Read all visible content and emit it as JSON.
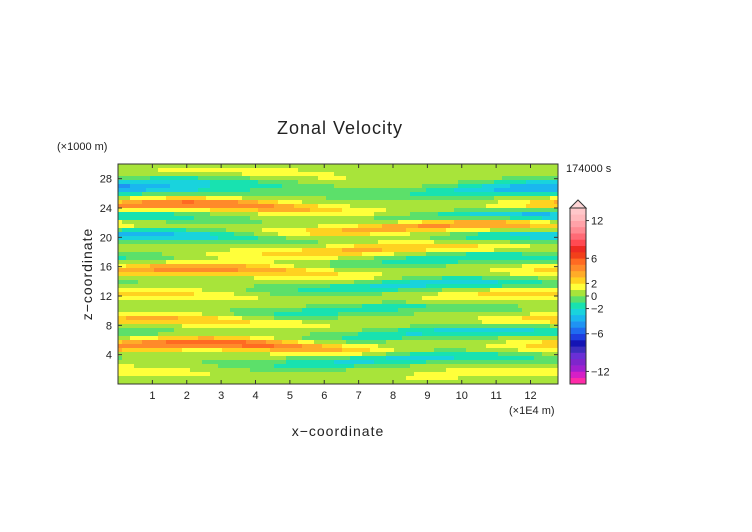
{
  "chart_data": {
    "type": "heatmap",
    "title": "Zonal Velocity",
    "xlabel": "x−coordinate",
    "ylabel": "z−coordinate",
    "x_unit": "(×1E4 m)",
    "y_unit": "(×1000 m)",
    "time_label": "174000 s",
    "xlim": [
      0,
      12.8
    ],
    "ylim": [
      0,
      30
    ],
    "x_ticks": [
      "1",
      "2",
      "3",
      "4",
      "5",
      "6",
      "7",
      "8",
      "9",
      "10",
      "11",
      "12"
    ],
    "y_ticks": [
      "4",
      "8",
      "12",
      "16",
      "20",
      "24",
      "28"
    ],
    "colorbar": {
      "levels": [
        -14,
        -13,
        -12,
        -11,
        -10,
        -9,
        -8,
        -7,
        -6,
        -5,
        -4,
        -3,
        -2,
        -1,
        0,
        1,
        2,
        3,
        4,
        5,
        6,
        7,
        8,
        9,
        10,
        11,
        12,
        13,
        14
      ],
      "colors": [
        "#ff2aa8",
        "#d61fc6",
        "#a01fd0",
        "#7f25cc",
        "#6a2fd6",
        "#3d2dbf",
        "#1414b4",
        "#1e3ee0",
        "#1f6bf0",
        "#1f93f3",
        "#1ab6ef",
        "#19d3dd",
        "#18e2b0",
        "#5ce06a",
        "#a8e43a",
        "#ffff3a",
        "#ffd220",
        "#ffac28",
        "#ff8a2a",
        "#ff6a22",
        "#f2401a",
        "#ee2a22",
        "#ff4a52",
        "#ff6a75",
        "#ff8a92",
        "#ffa2a8",
        "#ffb9bc",
        "#ffc7c9"
      ],
      "tick_labels": [
        {
          "value": 12,
          "label": "12"
        },
        {
          "value": 6,
          "label": "6"
        },
        {
          "value": 2,
          "label": "2"
        },
        {
          "value": 0,
          "label": "0"
        },
        {
          "value": -2,
          "label": "−2"
        },
        {
          "value": -6,
          "label": "−6"
        },
        {
          "value": -12,
          "label": "−12"
        }
      ]
    },
    "bands": [
      {
        "z": 28.5,
        "amp": 1.0,
        "phase": 0.0
      },
      {
        "z": 27.0,
        "amp": -2.5,
        "phase": 0.6
      },
      {
        "z": 26.0,
        "amp": -3.5,
        "phase": 1.2
      },
      {
        "z": 24.0,
        "amp": 5.0,
        "phase": 0.4
      },
      {
        "z": 22.5,
        "amp": -4.0,
        "phase": 1.5
      },
      {
        "z": 21.3,
        "amp": 4.5,
        "phase": 2.1
      },
      {
        "z": 19.8,
        "amp": -4.0,
        "phase": 0.9
      },
      {
        "z": 18.2,
        "amp": 3.0,
        "phase": 2.6
      },
      {
        "z": 16.8,
        "amp": -2.5,
        "phase": 1.7
      },
      {
        "z": 15.2,
        "amp": 4.0,
        "phase": 0.3
      },
      {
        "z": 13.3,
        "amp": -3.0,
        "phase": 2.2
      },
      {
        "z": 11.8,
        "amp": 2.5,
        "phase": 1.1
      },
      {
        "z": 10.0,
        "amp": -2.0,
        "phase": 2.8
      },
      {
        "z": 8.3,
        "amp": 3.0,
        "phase": 0.7
      },
      {
        "z": 6.8,
        "amp": -3.0,
        "phase": 1.9
      },
      {
        "z": 5.0,
        "amp": 5.5,
        "phase": 0.2
      },
      {
        "z": 3.2,
        "amp": -3.0,
        "phase": 2.4
      },
      {
        "z": 1.2,
        "amp": 1.5,
        "phase": 1.3
      }
    ]
  }
}
